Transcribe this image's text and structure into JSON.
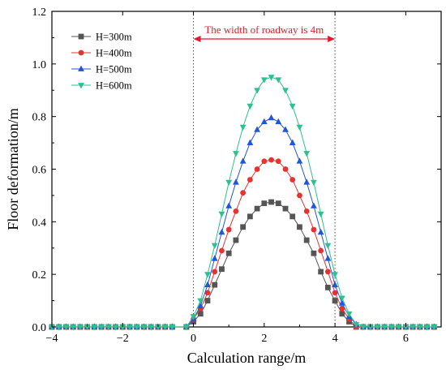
{
  "chart_data": {
    "type": "line",
    "title": "",
    "xlabel": "Calculation range/m",
    "ylabel": "Floor deformation/m",
    "xlim": [
      -4,
      7
    ],
    "ylim": [
      0,
      1.2
    ],
    "xticks": [
      -4,
      -2,
      0,
      2,
      4,
      6
    ],
    "yticks": [
      0.0,
      0.2,
      0.4,
      0.6,
      0.8,
      1.0,
      1.2
    ],
    "grid": false,
    "legend_position": "top-left",
    "reference_lines_x": [
      0,
      4
    ],
    "annotation": {
      "text": "The width of roadway is 4m",
      "from_x": 0,
      "to_x": 4,
      "color": "#e8182a"
    },
    "x": [
      -4,
      -3,
      -2,
      -1,
      -0.2,
      0,
      0.2,
      0.4,
      0.6,
      0.8,
      1.0,
      1.2,
      1.4,
      1.6,
      1.8,
      2.0,
      2.2,
      2.4,
      2.6,
      2.8,
      3.0,
      3.2,
      3.4,
      3.6,
      3.8,
      4.0,
      4.2,
      4.4,
      4.6,
      5.0,
      6.0,
      7.0
    ],
    "series": [
      {
        "name": "H=300m",
        "color": "#555555",
        "marker": "square",
        "values": [
          0,
          0,
          0,
          0,
          0.0,
          0.02,
          0.05,
          0.1,
          0.16,
          0.22,
          0.28,
          0.33,
          0.38,
          0.42,
          0.45,
          0.47,
          0.475,
          0.47,
          0.45,
          0.42,
          0.38,
          0.33,
          0.28,
          0.21,
          0.15,
          0.1,
          0.05,
          0.02,
          0.0,
          0,
          0,
          0
        ]
      },
      {
        "name": "H=400m",
        "color": "#e8322f",
        "marker": "circle",
        "values": [
          0,
          0,
          0,
          0,
          0.0,
          0.03,
          0.07,
          0.13,
          0.21,
          0.29,
          0.37,
          0.44,
          0.51,
          0.56,
          0.6,
          0.63,
          0.635,
          0.63,
          0.6,
          0.56,
          0.5,
          0.44,
          0.37,
          0.29,
          0.21,
          0.13,
          0.07,
          0.03,
          0.0,
          0,
          0,
          0
        ]
      },
      {
        "name": "H=500m",
        "color": "#2255d8",
        "marker": "triangle-up",
        "values": [
          0,
          0,
          0,
          0,
          0.0,
          0.03,
          0.08,
          0.16,
          0.26,
          0.36,
          0.46,
          0.55,
          0.63,
          0.7,
          0.75,
          0.78,
          0.795,
          0.78,
          0.75,
          0.7,
          0.63,
          0.55,
          0.46,
          0.36,
          0.26,
          0.16,
          0.09,
          0.04,
          0.01,
          0,
          0,
          0
        ]
      },
      {
        "name": "H=600m",
        "color": "#2ec090",
        "marker": "triangle-down",
        "values": [
          0,
          0,
          0,
          0,
          0.0,
          0.04,
          0.1,
          0.2,
          0.31,
          0.43,
          0.55,
          0.66,
          0.76,
          0.84,
          0.9,
          0.94,
          0.95,
          0.94,
          0.9,
          0.84,
          0.76,
          0.66,
          0.55,
          0.43,
          0.31,
          0.2,
          0.11,
          0.05,
          0.01,
          0,
          0,
          0
        ]
      }
    ]
  }
}
